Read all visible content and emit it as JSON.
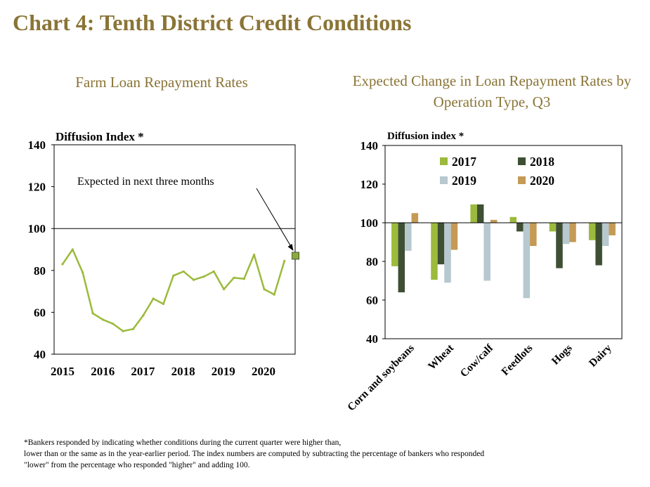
{
  "page": {
    "title": "Chart 4: Tenth District Credit Conditions",
    "footnote_lines": [
      "*Bankers responded by indicating whether conditions during the current quarter were higher than,",
      "lower than or the same as in the year-earlier period. The index numbers are computed by subtracting the percentage of bankers who responded",
      "\"lower\" from the percentage who responded \"higher\" and adding 100."
    ],
    "colors": {
      "title": "#8a7436",
      "line": "#9cba3c",
      "expected_marker": "#8aab3a"
    }
  },
  "chart_data": [
    {
      "type": "line",
      "title": "Farm Loan Repayment Rates",
      "ylabel": "Diffusion  Index *",
      "ylim": [
        40,
        140
      ],
      "yticks": [
        40,
        60,
        80,
        100,
        120,
        140
      ],
      "reference_line": 100,
      "xticklabels": [
        "2015",
        "2016",
        "2017",
        "2018",
        "2019",
        "2020"
      ],
      "series": [
        {
          "values": [
            83,
            90,
            79,
            59.5,
            56.5,
            54.5,
            51,
            52,
            58.5,
            66.5,
            64,
            77.5,
            79.5,
            75.5,
            77,
            79.5,
            71,
            76.5,
            76,
            87.5,
            71,
            68.5,
            84.5
          ]
        }
      ],
      "expected": {
        "label": "Expected in next three months",
        "value": 87
      }
    },
    {
      "type": "bar",
      "title": "Expected Change in Loan Repayment Rates by Operation Type, Q3",
      "ylabel": "Diffusion  index *",
      "ylim": [
        40,
        140
      ],
      "yticks": [
        40,
        60,
        80,
        100,
        120,
        140
      ],
      "baseline": 100,
      "categories": [
        "Corn and soybeans",
        "Wheat",
        "Cow/calf",
        "Feedlots",
        "Hogs",
        "Dairy"
      ],
      "series": [
        {
          "name": "2017",
          "color": "#9cba3c",
          "values": [
            77.5,
            70.5,
            109.5,
            103,
            95.5,
            91
          ]
        },
        {
          "name": "2018",
          "color": "#3e4f33",
          "values": [
            64,
            78.5,
            109.5,
            95.5,
            76.5,
            78
          ]
        },
        {
          "name": "2019",
          "color": "#b7c8cf",
          "values": [
            85.5,
            69,
            70,
            61,
            89,
            88
          ]
        },
        {
          "name": "2020",
          "color": "#c49a55",
          "values": [
            105,
            86,
            101.5,
            88,
            90,
            93.5
          ]
        }
      ]
    }
  ]
}
